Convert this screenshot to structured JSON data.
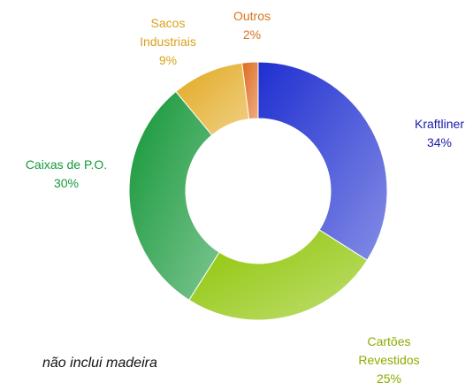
{
  "chart_data": {
    "type": "donut",
    "categories": [
      "Kraftliner",
      "Cartões Revestidos",
      "Caixas de P.O.",
      "Sacos Industriais",
      "Outros"
    ],
    "values": [
      34,
      25,
      30,
      9,
      2
    ],
    "value_labels": [
      "34%",
      "25%",
      "30%",
      "9%",
      "2%"
    ],
    "colors": [
      "#1f2fd0",
      "#8cc400",
      "#129636",
      "#e2a920",
      "#de6a1e"
    ],
    "label_colors": [
      "#1a1aaa",
      "#8aac00",
      "#149a3a",
      "#d9a21a",
      "#d8741c"
    ],
    "annotation": "não inclui madeira"
  }
}
